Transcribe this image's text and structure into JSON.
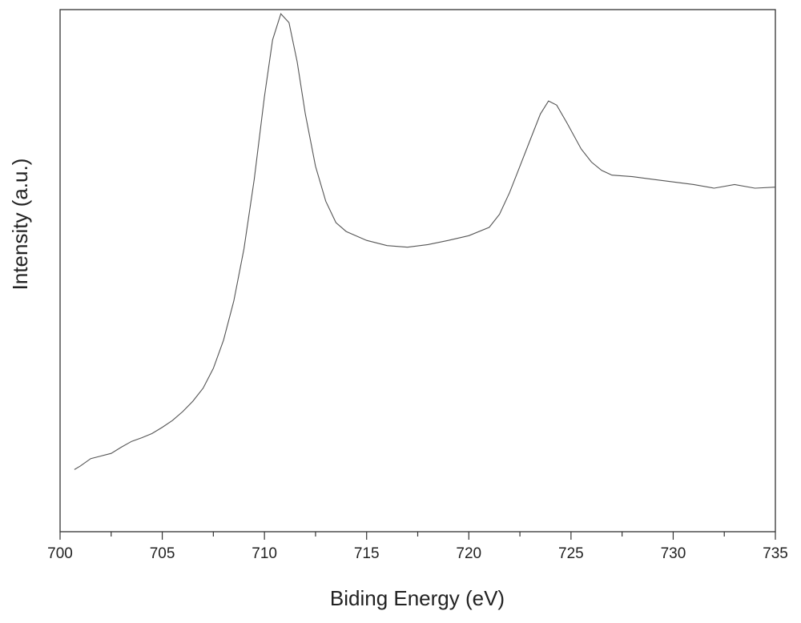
{
  "chart_data": {
    "type": "line",
    "title": "",
    "xlabel": "Biding Energy (eV)",
    "ylabel": "Intensity (a.u.)",
    "xlim": [
      700,
      735
    ],
    "ylim": [
      0,
      100
    ],
    "x_ticks": [
      700,
      705,
      710,
      715,
      720,
      725,
      730,
      735
    ],
    "x_tick_labels": [
      "700",
      "705",
      "710",
      "715",
      "720",
      "725",
      "730",
      "735"
    ],
    "y_ticks": [],
    "grid": false,
    "legend": "none",
    "line_color": "#555555",
    "series": [
      {
        "values": [
          [
            700.7,
            11.9
          ],
          [
            701.0,
            12.6
          ],
          [
            701.5,
            14.0
          ],
          [
            702.0,
            14.5
          ],
          [
            702.5,
            15.0
          ],
          [
            703.0,
            16.2
          ],
          [
            703.5,
            17.3
          ],
          [
            704.0,
            18.0
          ],
          [
            704.5,
            18.8
          ],
          [
            705.0,
            20.0
          ],
          [
            705.5,
            21.3
          ],
          [
            706.0,
            23.0
          ],
          [
            706.5,
            25.0
          ],
          [
            707.0,
            27.5
          ],
          [
            707.5,
            31.3
          ],
          [
            708.0,
            36.7
          ],
          [
            708.5,
            44.2
          ],
          [
            709.0,
            54.2
          ],
          [
            709.5,
            67.5
          ],
          [
            710.0,
            83.3
          ],
          [
            710.4,
            94.2
          ],
          [
            710.8,
            99.2
          ],
          [
            711.2,
            97.5
          ],
          [
            711.6,
            90.0
          ],
          [
            712.0,
            80.0
          ],
          [
            712.5,
            70.0
          ],
          [
            713.0,
            63.3
          ],
          [
            713.5,
            59.2
          ],
          [
            714.0,
            57.5
          ],
          [
            715.0,
            55.8
          ],
          [
            716.0,
            54.8
          ],
          [
            717.0,
            54.5
          ],
          [
            718.0,
            55.0
          ],
          [
            719.0,
            55.8
          ],
          [
            720.0,
            56.7
          ],
          [
            721.0,
            58.3
          ],
          [
            721.5,
            60.8
          ],
          [
            722.0,
            65.0
          ],
          [
            722.5,
            70.0
          ],
          [
            723.0,
            75.0
          ],
          [
            723.5,
            80.0
          ],
          [
            723.9,
            82.5
          ],
          [
            724.3,
            81.7
          ],
          [
            724.8,
            78.3
          ],
          [
            725.5,
            73.3
          ],
          [
            726.0,
            70.8
          ],
          [
            726.5,
            69.2
          ],
          [
            727.0,
            68.3
          ],
          [
            728.0,
            68.0
          ],
          [
            729.0,
            67.5
          ],
          [
            730.0,
            67.0
          ],
          [
            731.0,
            66.5
          ],
          [
            732.0,
            65.8
          ],
          [
            733.0,
            66.5
          ],
          [
            734.0,
            65.8
          ],
          [
            735.0,
            66.0
          ]
        ]
      }
    ]
  }
}
